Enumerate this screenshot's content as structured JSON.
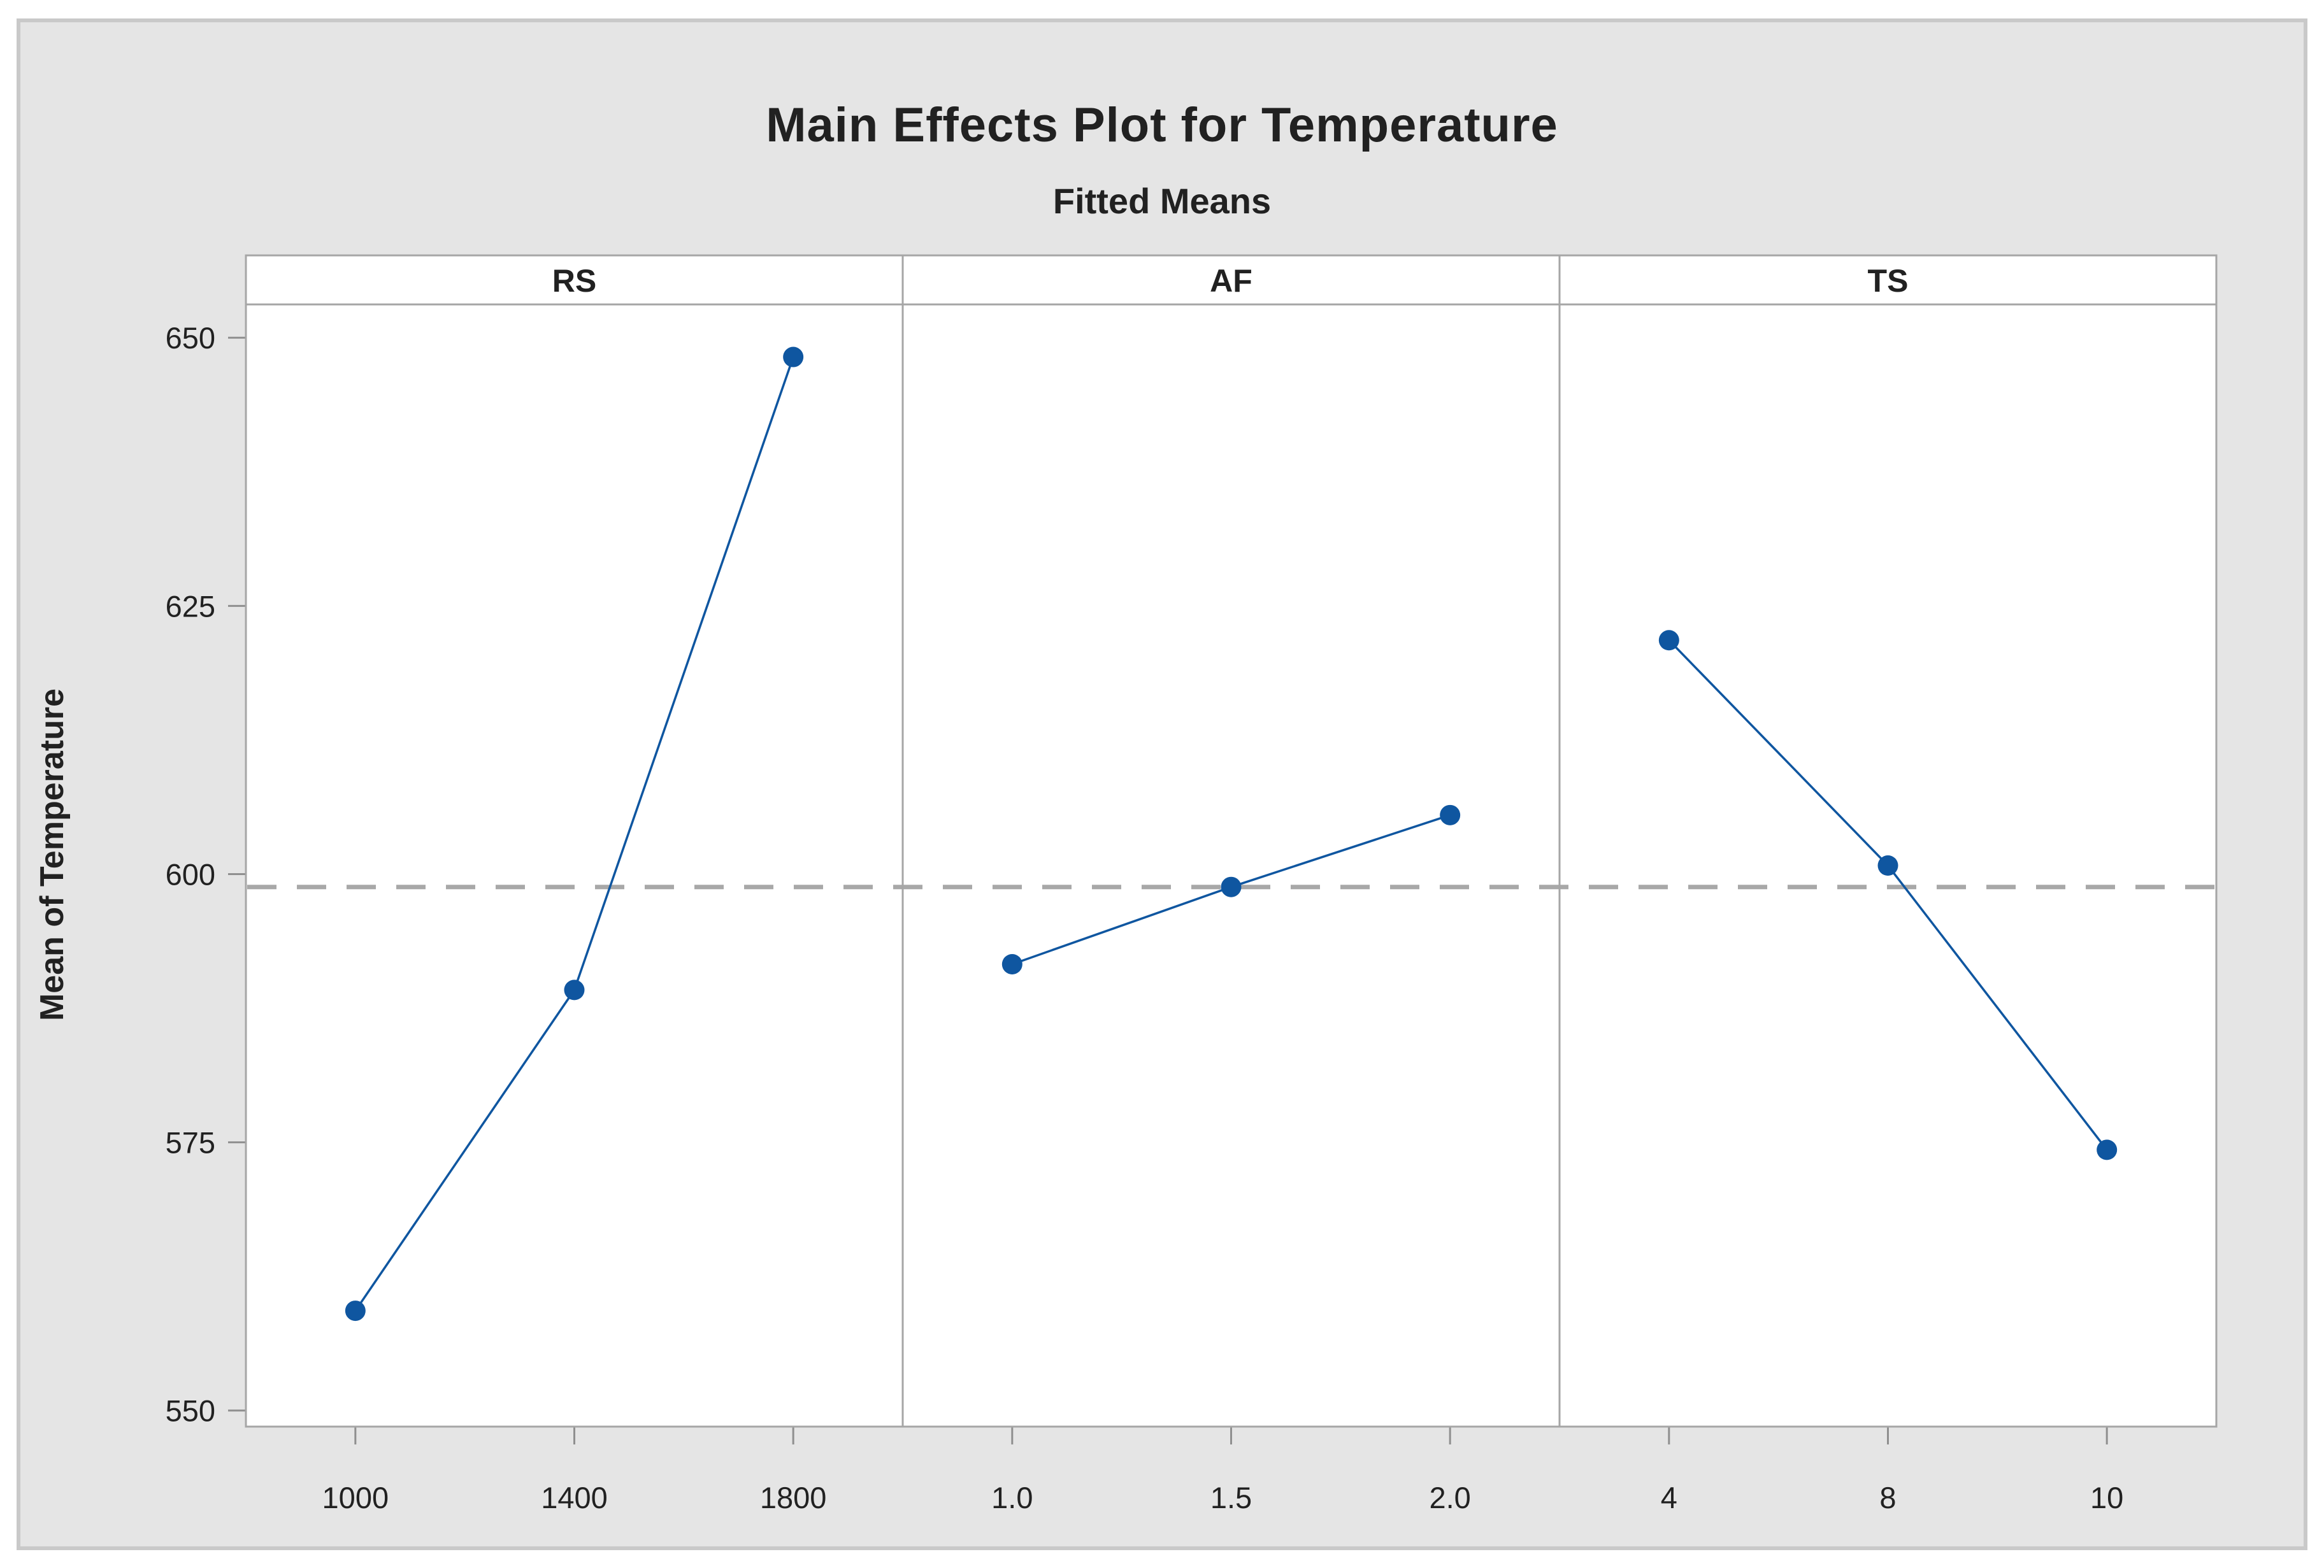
{
  "figure": {
    "title": "Main Effects Plot for Temperature",
    "subtitle": "Fitted Means"
  },
  "chart_data": {
    "type": "line",
    "title": "Main Effects Plot for Temperature",
    "subtitle": "Fitted Means",
    "ylabel": "Mean of Temperature",
    "y_ticks": [
      650,
      625,
      600,
      575,
      550
    ],
    "ylim": [
      548.5,
      653.1
    ],
    "grid": "off",
    "reference_line_mean": 598.8,
    "reference_line_style": "dashed",
    "panels": [
      {
        "label": "RS",
        "categories": [
          "1000",
          "1400",
          "1800"
        ],
        "values": [
          559.3,
          589.2,
          648.2
        ]
      },
      {
        "label": "AF",
        "categories": [
          "1.0",
          "1.5",
          "2.0"
        ],
        "values": [
          591.6,
          598.8,
          605.5
        ]
      },
      {
        "label": "TS",
        "categories": [
          "4",
          "8",
          "10"
        ],
        "values": [
          621.8,
          600.8,
          574.3
        ]
      }
    ],
    "colors": {
      "series_blue": "#0f56a0",
      "reference_gray": "#a8a8a8",
      "frame_gray": "#a6a6a6",
      "tick_gray": "#8f8f8f",
      "figure_bg": "#e5e5e5",
      "figure_border": "#c9c9c9",
      "plot_bg": "#ffffff",
      "text": "#212121"
    }
  }
}
